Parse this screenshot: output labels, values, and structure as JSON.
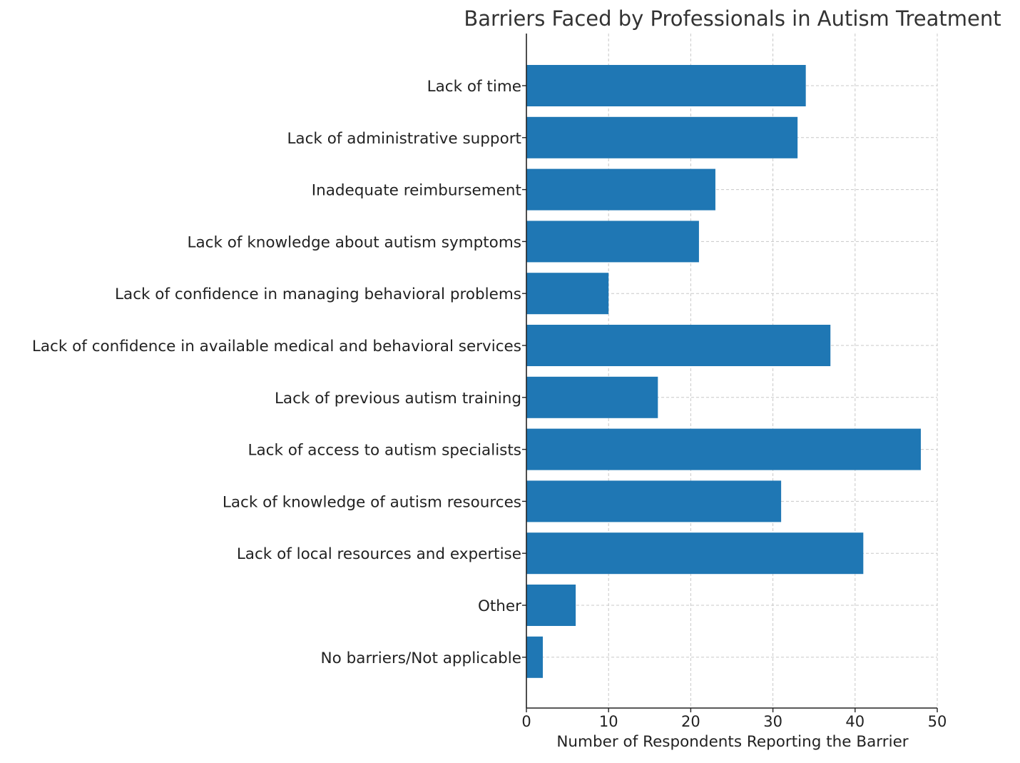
{
  "chart_data": {
    "type": "bar",
    "orientation": "horizontal",
    "title": "Barriers Faced by Professionals in Autism Treatment",
    "xlabel": "Number of Respondents Reporting the Barrier",
    "ylabel": "",
    "categories": [
      "Lack of time",
      "Lack of administrative support",
      "Inadequate reimbursement",
      "Lack of knowledge about autism symptoms",
      "Lack of confidence in managing behavioral problems",
      "Lack of confidence in available medical and behavioral services",
      "Lack of previous autism training",
      "Lack of access to autism specialists",
      "Lack of knowledge of autism resources",
      "Lack of local resources and expertise",
      "Other",
      "No barriers/Not applicable"
    ],
    "values": [
      34,
      33,
      23,
      21,
      10,
      37,
      16,
      48,
      31,
      41,
      6,
      2
    ],
    "xlim": [
      0,
      50
    ],
    "xticks": [
      0,
      10,
      20,
      30,
      40,
      50
    ],
    "xtick_labels": [
      "0",
      "10",
      "20",
      "30",
      "40",
      "50"
    ],
    "grid": true,
    "bar_color": "#1f77b4"
  }
}
